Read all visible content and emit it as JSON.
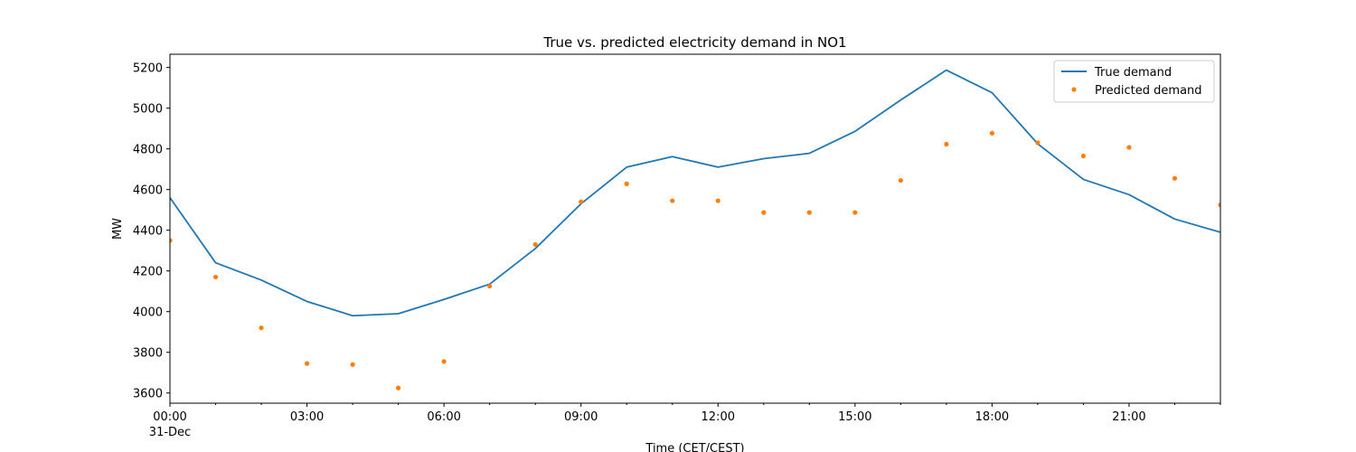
{
  "chart_data": {
    "type": "line",
    "title": "True vs. predicted electricity demand in NO1",
    "xlabel": "Time (CET/CEST)",
    "ylabel": "MW",
    "x": [
      "00:00",
      "01:00",
      "02:00",
      "03:00",
      "04:00",
      "05:00",
      "06:00",
      "07:00",
      "08:00",
      "09:00",
      "10:00",
      "11:00",
      "12:00",
      "13:00",
      "14:00",
      "15:00",
      "16:00",
      "17:00",
      "18:00",
      "19:00",
      "20:00",
      "21:00",
      "22:00",
      "23:00"
    ],
    "x_range": [
      0,
      23
    ],
    "xticks": [
      0,
      3,
      6,
      9,
      12,
      15,
      18,
      21
    ],
    "xtick_labels": [
      "00:00",
      "03:00",
      "06:00",
      "09:00",
      "12:00",
      "15:00",
      "18:00",
      "21:00"
    ],
    "date_label": "31-Dec",
    "ylim": [
      3550,
      5265
    ],
    "yticks": [
      3600,
      3800,
      4000,
      4200,
      4400,
      4600,
      4800,
      5000,
      5200
    ],
    "grid": false,
    "legend": "top-right",
    "series": [
      {
        "name": "True demand",
        "style": "line",
        "color": "#1f77b4",
        "values": [
          4560,
          4240,
          4155,
          4050,
          3980,
          3990,
          4060,
          4135,
          4310,
          4530,
          4710,
          4762,
          4710,
          4752,
          4778,
          4886,
          5040,
          5187,
          5076,
          4825,
          4650,
          4575,
          4455,
          4390
        ]
      },
      {
        "name": "Predicted demand",
        "style": "points",
        "color": "#ff7f0e",
        "values": [
          4350,
          4170,
          3920,
          3745,
          3740,
          3625,
          3755,
          4125,
          4330,
          4540,
          4628,
          4545,
          4545,
          4487,
          4487,
          4487,
          4645,
          4823,
          4877,
          4830,
          4765,
          4807,
          4655,
          4525
        ]
      }
    ]
  }
}
